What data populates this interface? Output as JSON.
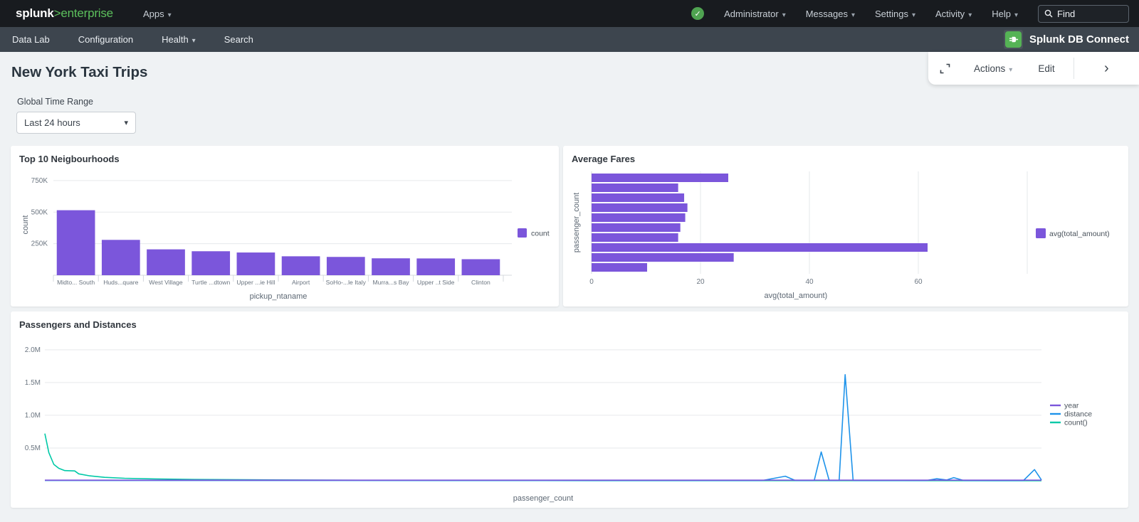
{
  "topbar": {
    "logo_main": "splunk",
    "logo_gt": ">",
    "logo_sub": "enterprise",
    "apps_label": "Apps",
    "menus": [
      "Administrator",
      "Messages",
      "Settings",
      "Activity",
      "Help"
    ],
    "find_placeholder": "Find"
  },
  "appbar": {
    "items": [
      "Data Lab",
      "Configuration",
      "Health",
      "Search"
    ],
    "app_name": "Splunk DB Connect"
  },
  "actionbar": {
    "actions_label": "Actions",
    "edit_label": "Edit"
  },
  "page": {
    "title": "New York Taxi Trips",
    "time_range_label": "Global Time Range",
    "time_range_value": "Last 24 hours"
  },
  "colors": {
    "purple": "#7b56db",
    "blue": "#1e93ea",
    "teal": "#00c9a7",
    "grid": "#e6e9eb",
    "axis": "#d5d9dd",
    "brand_green": "#5cc05c",
    "status_green": "#4fa351"
  },
  "chart_data": [
    {
      "type": "bar",
      "title": "Top 10 Neigbourhoods",
      "categories": [
        "Midto... South",
        "Huds...quare",
        "West Village",
        "Turtle ...dtown",
        "Upper ...ie Hill",
        "Airport",
        "SoHo-...le Italy",
        "Murra...s Bay",
        "Upper ..t Side",
        "Clinton"
      ],
      "values": [
        515000,
        280000,
        205000,
        190000,
        180000,
        150000,
        145000,
        134000,
        133000,
        127000
      ],
      "xlabel": "pickup_ntaname",
      "ylabel": "count",
      "yticks": [
        250000,
        500000,
        750000
      ],
      "ytick_labels": [
        "250K",
        "500K",
        "750K"
      ],
      "ylim": [
        0,
        800000
      ],
      "bar_color": "#7b56db",
      "legend": [
        "count"
      ],
      "legend_position": "right",
      "grid": true
    },
    {
      "type": "horizontal_bar",
      "title": "Average Fares",
      "values": [
        25.1,
        15.9,
        17.0,
        17.6,
        17.2,
        16.3,
        15.9,
        61.7,
        26.1,
        10.2
      ],
      "xlabel": "avg(total_amount)",
      "ylabel": "passenger_count",
      "xticks": [
        0,
        20,
        40,
        60
      ],
      "grid_xticks": [
        20,
        40,
        60,
        80
      ],
      "xlim": [
        0,
        85
      ],
      "bar_color": "#7b56db",
      "legend": [
        "avg(total_amount)"
      ],
      "legend_position": "right",
      "grid": true
    },
    {
      "type": "line",
      "title": "Passengers and Distances",
      "xlabel": "passenger_count",
      "yticks": [
        500000,
        1000000,
        1500000,
        2000000
      ],
      "ytick_labels": [
        "0.5M",
        "1.0M",
        "1.5M",
        "2.0M"
      ],
      "ylim": [
        0,
        2150000
      ],
      "legend": [
        "year",
        "distance",
        "count()"
      ],
      "legend_position": "right",
      "grid": true,
      "series": [
        {
          "name": "count()",
          "color": "#00c9a7",
          "points": [
            [
              0,
              720000
            ],
            [
              0.004,
              430000
            ],
            [
              0.009,
              250000
            ],
            [
              0.014,
              190000
            ],
            [
              0.02,
              155000
            ],
            [
              0.03,
              150000
            ],
            [
              0.034,
              105000
            ],
            [
              0.045,
              75000
            ],
            [
              0.06,
              52000
            ],
            [
              0.08,
              38000
            ],
            [
              0.11,
              28000
            ],
            [
              0.15,
              20000
            ],
            [
              0.2,
              15000
            ],
            [
              0.27,
              10000
            ],
            [
              0.34,
              6000
            ],
            [
              0.42,
              3000
            ],
            [
              0.55,
              2000
            ],
            [
              1,
              1500
            ]
          ]
        },
        {
          "name": "distance",
          "color": "#1e93ea",
          "points": [
            [
              0,
              4000
            ],
            [
              0.72,
              4000
            ],
            [
              0.743,
              70000
            ],
            [
              0.753,
              4000
            ],
            [
              0.772,
              4000
            ],
            [
              0.779,
              440000
            ],
            [
              0.787,
              4000
            ],
            [
              0.797,
              4000
            ],
            [
              0.803,
              1620000
            ],
            [
              0.811,
              4000
            ],
            [
              0.885,
              4000
            ],
            [
              0.895,
              30000
            ],
            [
              0.905,
              12000
            ],
            [
              0.912,
              48000
            ],
            [
              0.922,
              4000
            ],
            [
              0.982,
              4000
            ],
            [
              0.993,
              170000
            ],
            [
              1,
              12000
            ]
          ]
        },
        {
          "name": "year",
          "color": "#7b56db",
          "points": [
            [
              0,
              9000
            ],
            [
              1,
              9000
            ]
          ]
        }
      ]
    }
  ]
}
